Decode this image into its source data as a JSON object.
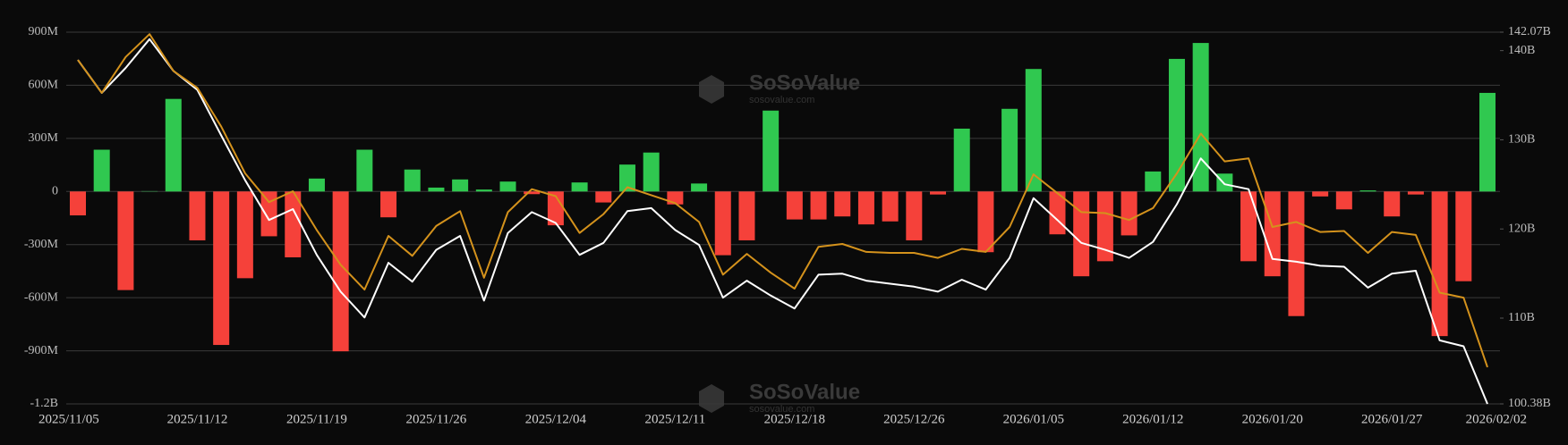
{
  "chart_data": {
    "type": "bar_line",
    "categories": [
      "2025/11/05",
      null,
      null,
      null,
      null,
      "2025/11/12",
      null,
      null,
      null,
      null,
      "2025/11/19",
      null,
      null,
      null,
      null,
      "2025/11/26",
      null,
      null,
      null,
      null,
      "2025/12/04",
      null,
      null,
      null,
      null,
      "2025/12/11",
      null,
      null,
      null,
      null,
      "2025/12/18",
      null,
      null,
      null,
      null,
      "2025/12/26",
      null,
      null,
      null,
      null,
      "2026/01/05",
      null,
      null,
      null,
      null,
      "2026/01/12",
      null,
      null,
      null,
      null,
      "2026/01/20",
      null,
      null,
      null,
      null,
      "2026/01/27",
      null,
      null,
      null,
      "2026/02/02"
    ],
    "values": [
      -135,
      236,
      -557,
      2,
      523,
      -276,
      -867,
      -490,
      -253,
      -372,
      73,
      -903,
      236,
      -146,
      124,
      22,
      68,
      11,
      56,
      -15,
      -191,
      51,
      -62,
      152,
      220,
      -73,
      45,
      -360,
      -276,
      457,
      -158,
      -158,
      -141,
      -186,
      -169,
      -276,
      -17,
      355,
      -343,
      467,
      692,
      -242,
      -479,
      -394,
      -248,
      113,
      749,
      839,
      101,
      -394,
      -479,
      -704,
      -28,
      -101,
      6,
      -141,
      -17,
      -817,
      -507,
      557
    ],
    "positive_color": "#30c850",
    "negative_color": "#f5413a",
    "series": [
      {
        "color": "#ffffff",
        "axis": "y2",
        "values": [
          138.95,
          135.27,
          138.06,
          141.29,
          137.72,
          135.6,
          130.48,
          125.46,
          121.0,
          122.23,
          117.1,
          112.97,
          110.07,
          116.2,
          114.09,
          117.66,
          119.22,
          111.97,
          119.55,
          121.89,
          120.67,
          117.1,
          118.44,
          122.0,
          122.34,
          119.88,
          118.21,
          112.3,
          114.2,
          112.53,
          111.08,
          114.87,
          114.98,
          114.2,
          113.86,
          113.53,
          112.97,
          114.31,
          113.2,
          116.76,
          123.45,
          121.0,
          118.44,
          117.66,
          116.76,
          118.55,
          122.78,
          127.91,
          125.01,
          124.46,
          116.65,
          116.32,
          115.87,
          115.76,
          113.42,
          114.98,
          115.31,
          107.51,
          106.84,
          100.38
        ]
      },
      {
        "color": "#d4921c",
        "axis": "y2",
        "values": [
          138.95,
          135.27,
          139.28,
          141.85,
          137.72,
          135.83,
          131.48,
          126.24,
          123.01,
          124.23,
          119.88,
          115.98,
          113.2,
          119.22,
          116.99,
          120.33,
          122.0,
          114.53,
          121.89,
          124.46,
          123.68,
          119.55,
          121.67,
          124.68,
          123.79,
          122.9,
          120.78,
          114.87,
          117.21,
          115.09,
          113.31,
          117.99,
          118.32,
          117.43,
          117.32,
          117.32,
          116.76,
          117.77,
          117.43,
          120.22,
          126.13,
          124.01,
          121.89,
          121.78,
          121.0,
          122.34,
          126.24,
          130.7,
          127.58,
          127.91,
          120.22,
          120.78,
          119.66,
          119.77,
          117.32,
          119.66,
          119.33,
          112.86,
          112.3,
          104.5
        ]
      }
    ],
    "ylim": [
      -1200,
      900
    ],
    "yticks": [
      {
        "value": -1200,
        "label": "-1.2B"
      },
      {
        "value": -900,
        "label": "-900M"
      },
      {
        "value": -600,
        "label": "-600M"
      },
      {
        "value": -300,
        "label": "-300M"
      },
      0,
      {
        "value": 300,
        "label": "300M"
      },
      {
        "value": 600,
        "label": "600M"
      },
      {
        "value": 900,
        "label": "900M"
      }
    ],
    "y2lim": [
      100.38,
      142.07
    ],
    "y2ticks": [
      {
        "value": 100.38,
        "label": "100.38B"
      },
      {
        "value": 110,
        "label": "110B"
      },
      {
        "value": 120,
        "label": "120B"
      },
      {
        "value": 130,
        "label": "130B"
      },
      {
        "value": 140,
        "label": "140B"
      },
      {
        "value": 142.07,
        "label": "142.07B"
      }
    ],
    "grid": true,
    "watermark": [
      "SoSoValue",
      "sosovalue.com"
    ]
  }
}
